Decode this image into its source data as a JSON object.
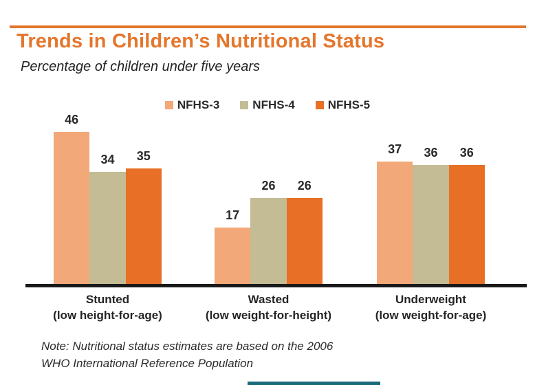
{
  "header": {
    "title": "Trends in Children’s Nutritional Status",
    "subtitle": "Percentage of children under five years"
  },
  "colors": {
    "accent_orange": "#e1762d",
    "title_orange": "#e4762c",
    "nfhs3": "#f2a878",
    "nfhs4": "#c4bc95",
    "nfhs5": "#e87026",
    "axis_black": "#1a1a1a",
    "text_dark": "#2a2a2a",
    "footer_teal": "#1a6b7c"
  },
  "chart_data": {
    "type": "bar",
    "title": "Trends in Children’s Nutritional Status",
    "subtitle": "Percentage of children under five years",
    "xlabel": "",
    "ylabel": "",
    "ylim": [
      0,
      50
    ],
    "grid": false,
    "legend_position": "top-center",
    "value_labels": true,
    "categories": [
      {
        "label": "Stunted",
        "sublabel": "(low height-for-age)"
      },
      {
        "label": "Wasted",
        "sublabel": "(low weight-for-height)"
      },
      {
        "label": "Underweight",
        "sublabel": "(low weight-for-age)"
      }
    ],
    "series": [
      {
        "name": "NFHS-3",
        "color": "#f2a878",
        "values": [
          46,
          17,
          37
        ]
      },
      {
        "name": "NFHS-4",
        "color": "#c4bc95",
        "values": [
          34,
          26,
          36
        ]
      },
      {
        "name": "NFHS-5",
        "color": "#e87026",
        "values": [
          35,
          26,
          36
        ]
      }
    ]
  },
  "note": {
    "line1": "Note: Nutritional status estimates are based on the 2006",
    "line2": "WHO International Reference Population"
  }
}
